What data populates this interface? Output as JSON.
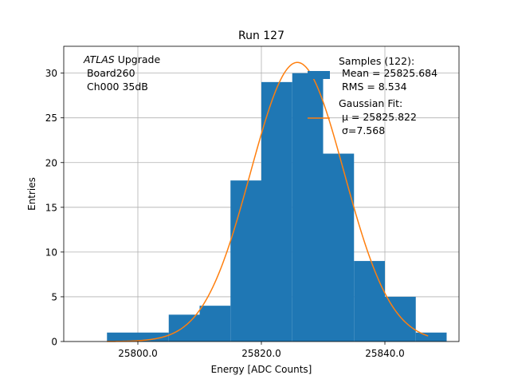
{
  "chart_data": {
    "type": "bar",
    "title": "Run 127",
    "xlabel": "Energy [ADC Counts]",
    "ylabel": "Entries",
    "xlim": [
      25788,
      25852
    ],
    "ylim": [
      0,
      33
    ],
    "grid": true,
    "x_ticks": [
      25800.0,
      25820.0,
      25840.0
    ],
    "x_tick_labels": [
      "25800.0",
      "25820.0",
      "25840.0"
    ],
    "y_ticks": [
      0,
      5,
      10,
      15,
      20,
      25,
      30
    ],
    "y_tick_labels": [
      "0",
      "5",
      "10",
      "15",
      "20",
      "25",
      "30"
    ],
    "bins": [
      {
        "x0": 25795,
        "x1": 25800,
        "count": 1
      },
      {
        "x0": 25800,
        "x1": 25805,
        "count": 1
      },
      {
        "x0": 25805,
        "x1": 25810,
        "count": 3
      },
      {
        "x0": 25810,
        "x1": 25815,
        "count": 4
      },
      {
        "x0": 25815,
        "x1": 25820,
        "count": 18
      },
      {
        "x0": 25820,
        "x1": 25825,
        "count": 29
      },
      {
        "x0": 25825,
        "x1": 25830,
        "count": 30
      },
      {
        "x0": 25830,
        "x1": 25835,
        "count": 21
      },
      {
        "x0": 25835,
        "x1": 25840,
        "count": 9
      },
      {
        "x0": 25840,
        "x1": 25845,
        "count": 5
      },
      {
        "x0": 25845,
        "x1": 25850,
        "count": 1
      }
    ],
    "fit": {
      "mu": 25825.822,
      "sigma": 7.568,
      "amplitude": 31.2,
      "x_range": [
        25795,
        25847
      ]
    },
    "colors": {
      "bars": "#1f77b4",
      "fit": "#ff7f0e",
      "grid": "#b0b0b0"
    },
    "annotation": {
      "lines": [
        {
          "italic": "ATLAS",
          "rest": " Upgrade"
        },
        {
          "italic": "",
          "rest": " Board260"
        },
        {
          "italic": "",
          "rest": " Ch000 35dB"
        }
      ]
    },
    "legend": {
      "placement": "top-right",
      "entries": [
        {
          "type": "patch",
          "lines": [
            "Samples (122):",
            " Mean = 25825.684",
            " RMS = 8.534"
          ]
        },
        {
          "type": "line",
          "lines": [
            "Gaussian Fit:",
            " μ = 25825.822",
            " σ=7.568"
          ]
        }
      ]
    }
  }
}
